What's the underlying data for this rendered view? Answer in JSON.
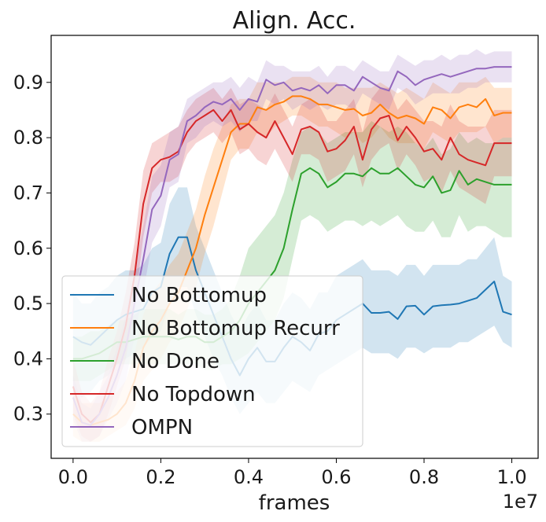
{
  "chart_data": {
    "type": "line",
    "title": "Align. Acc.",
    "xlabel": "frames",
    "x_offset_label": "1e7",
    "ylabel": "",
    "xlim": [
      -0.05,
      1.06
    ],
    "ylim": [
      0.22,
      0.985
    ],
    "x_ticks": [
      0.0,
      0.2,
      0.4,
      0.6,
      0.8,
      1.0
    ],
    "x_tick_labels": [
      "0.0",
      "0.2",
      "0.4",
      "0.6",
      "0.8",
      "1.0"
    ],
    "y_ticks": [
      0.3,
      0.4,
      0.5,
      0.6,
      0.7,
      0.8,
      0.9
    ],
    "y_tick_labels": [
      "0.3",
      "0.4",
      "0.5",
      "0.6",
      "0.7",
      "0.8",
      "0.9"
    ],
    "grid": false,
    "legend_position": "lower-left",
    "x": [
      0.0,
      0.02,
      0.04,
      0.06,
      0.08,
      0.1,
      0.12,
      0.14,
      0.16,
      0.18,
      0.2,
      0.22,
      0.24,
      0.26,
      0.28,
      0.3,
      0.32,
      0.34,
      0.36,
      0.38,
      0.4,
      0.42,
      0.44,
      0.46,
      0.48,
      0.5,
      0.52,
      0.54,
      0.56,
      0.58,
      0.6,
      0.62,
      0.64,
      0.66,
      0.68,
      0.7,
      0.72,
      0.74,
      0.76,
      0.78,
      0.8,
      0.82,
      0.84,
      0.86,
      0.88,
      0.9,
      0.92,
      0.94,
      0.96,
      0.98,
      1.0
    ],
    "series": [
      {
        "name": "No Bottomup",
        "color": "#1f77b4",
        "values": [
          0.44,
          0.43,
          0.425,
          0.44,
          0.455,
          0.47,
          0.48,
          0.485,
          0.49,
          0.52,
          0.53,
          0.59,
          0.62,
          0.62,
          0.56,
          0.52,
          0.48,
          0.44,
          0.4,
          0.37,
          0.4,
          0.42,
          0.395,
          0.395,
          0.42,
          0.44,
          0.43,
          0.415,
          0.445,
          0.45,
          0.47,
          0.48,
          0.49,
          0.5,
          0.483,
          0.483,
          0.485,
          0.472,
          0.495,
          0.496,
          0.48,
          0.495,
          0.497,
          0.498,
          0.5,
          0.505,
          0.51,
          0.525,
          0.54,
          0.485,
          0.48
        ],
        "lower": [
          0.34,
          0.33,
          0.34,
          0.36,
          0.37,
          0.39,
          0.4,
          0.41,
          0.42,
          0.44,
          0.45,
          0.5,
          0.53,
          0.53,
          0.48,
          0.44,
          0.4,
          0.37,
          0.33,
          0.3,
          0.32,
          0.34,
          0.32,
          0.32,
          0.34,
          0.36,
          0.35,
          0.34,
          0.37,
          0.38,
          0.39,
          0.4,
          0.41,
          0.42,
          0.41,
          0.41,
          0.41,
          0.4,
          0.42,
          0.42,
          0.41,
          0.42,
          0.42,
          0.42,
          0.43,
          0.43,
          0.44,
          0.45,
          0.46,
          0.43,
          0.42
        ],
        "upper": [
          0.52,
          0.5,
          0.5,
          0.52,
          0.53,
          0.55,
          0.56,
          0.56,
          0.57,
          0.6,
          0.61,
          0.68,
          0.71,
          0.71,
          0.64,
          0.6,
          0.56,
          0.52,
          0.48,
          0.45,
          0.48,
          0.5,
          0.47,
          0.47,
          0.5,
          0.52,
          0.51,
          0.49,
          0.52,
          0.52,
          0.55,
          0.56,
          0.57,
          0.58,
          0.56,
          0.56,
          0.56,
          0.55,
          0.57,
          0.57,
          0.55,
          0.57,
          0.57,
          0.57,
          0.57,
          0.58,
          0.58,
          0.6,
          0.62,
          0.55,
          0.54
        ]
      },
      {
        "name": "No Bottomup Recurr",
        "color": "#ff7f0e",
        "values": [
          0.3,
          0.285,
          0.28,
          0.285,
          0.29,
          0.3,
          0.32,
          0.36,
          0.42,
          0.45,
          0.47,
          0.5,
          0.52,
          0.56,
          0.6,
          0.66,
          0.71,
          0.76,
          0.81,
          0.825,
          0.825,
          0.855,
          0.85,
          0.86,
          0.865,
          0.875,
          0.875,
          0.87,
          0.86,
          0.86,
          0.855,
          0.85,
          0.852,
          0.84,
          0.845,
          0.86,
          0.845,
          0.835,
          0.84,
          0.835,
          0.825,
          0.855,
          0.85,
          0.835,
          0.855,
          0.86,
          0.855,
          0.87,
          0.84,
          0.845,
          0.845
        ],
        "lower": [
          0.26,
          0.25,
          0.25,
          0.25,
          0.26,
          0.27,
          0.28,
          0.31,
          0.36,
          0.38,
          0.4,
          0.43,
          0.45,
          0.49,
          0.53,
          0.59,
          0.64,
          0.7,
          0.76,
          0.78,
          0.78,
          0.81,
          0.8,
          0.82,
          0.83,
          0.84,
          0.84,
          0.83,
          0.82,
          0.82,
          0.81,
          0.8,
          0.81,
          0.79,
          0.8,
          0.82,
          0.8,
          0.79,
          0.79,
          0.79,
          0.78,
          0.81,
          0.8,
          0.79,
          0.81,
          0.81,
          0.81,
          0.82,
          0.79,
          0.8,
          0.8
        ],
        "upper": [
          0.34,
          0.32,
          0.32,
          0.32,
          0.33,
          0.34,
          0.36,
          0.41,
          0.48,
          0.52,
          0.54,
          0.57,
          0.59,
          0.63,
          0.67,
          0.73,
          0.78,
          0.82,
          0.86,
          0.87,
          0.87,
          0.9,
          0.9,
          0.9,
          0.9,
          0.91,
          0.91,
          0.91,
          0.9,
          0.9,
          0.9,
          0.89,
          0.89,
          0.89,
          0.89,
          0.9,
          0.89,
          0.88,
          0.89,
          0.88,
          0.87,
          0.9,
          0.89,
          0.88,
          0.9,
          0.9,
          0.9,
          0.91,
          0.89,
          0.89,
          0.89
        ]
      },
      {
        "name": "No Done",
        "color": "#2ca02c",
        "values": [
          0.4,
          0.4,
          0.405,
          0.41,
          0.42,
          0.43,
          0.43,
          0.435,
          0.44,
          0.44,
          0.44,
          0.44,
          0.435,
          0.44,
          0.44,
          0.43,
          0.43,
          0.44,
          0.45,
          0.47,
          0.5,
          0.52,
          0.54,
          0.56,
          0.6,
          0.67,
          0.735,
          0.745,
          0.735,
          0.71,
          0.72,
          0.735,
          0.735,
          0.73,
          0.745,
          0.735,
          0.735,
          0.745,
          0.73,
          0.715,
          0.71,
          0.73,
          0.7,
          0.705,
          0.74,
          0.715,
          0.725,
          0.72,
          0.715,
          0.715,
          0.715
        ],
        "lower": [
          0.36,
          0.36,
          0.36,
          0.37,
          0.38,
          0.39,
          0.39,
          0.39,
          0.39,
          0.39,
          0.39,
          0.39,
          0.39,
          0.39,
          0.39,
          0.38,
          0.38,
          0.39,
          0.39,
          0.4,
          0.41,
          0.43,
          0.45,
          0.47,
          0.51,
          0.58,
          0.65,
          0.66,
          0.65,
          0.63,
          0.64,
          0.65,
          0.65,
          0.64,
          0.65,
          0.64,
          0.65,
          0.66,
          0.64,
          0.63,
          0.63,
          0.65,
          0.62,
          0.62,
          0.66,
          0.63,
          0.64,
          0.64,
          0.63,
          0.62,
          0.62
        ],
        "upper": [
          0.44,
          0.44,
          0.45,
          0.45,
          0.46,
          0.47,
          0.47,
          0.48,
          0.49,
          0.49,
          0.49,
          0.49,
          0.48,
          0.49,
          0.49,
          0.48,
          0.48,
          0.49,
          0.51,
          0.55,
          0.6,
          0.62,
          0.64,
          0.66,
          0.7,
          0.76,
          0.81,
          0.82,
          0.81,
          0.79,
          0.8,
          0.81,
          0.81,
          0.81,
          0.83,
          0.82,
          0.81,
          0.82,
          0.81,
          0.79,
          0.78,
          0.8,
          0.77,
          0.78,
          0.81,
          0.79,
          0.8,
          0.79,
          0.79,
          0.8,
          0.8
        ]
      },
      {
        "name": "No Topdown",
        "color": "#d62728",
        "values": [
          0.35,
          0.3,
          0.285,
          0.3,
          0.35,
          0.4,
          0.46,
          0.55,
          0.68,
          0.745,
          0.76,
          0.765,
          0.775,
          0.81,
          0.83,
          0.84,
          0.85,
          0.83,
          0.85,
          0.815,
          0.825,
          0.81,
          0.8,
          0.83,
          0.8,
          0.77,
          0.815,
          0.82,
          0.81,
          0.775,
          0.78,
          0.795,
          0.82,
          0.76,
          0.815,
          0.835,
          0.84,
          0.795,
          0.82,
          0.8,
          0.775,
          0.78,
          0.76,
          0.8,
          0.77,
          0.76,
          0.755,
          0.75,
          0.79,
          0.79,
          0.79
        ],
        "lower": [
          0.3,
          0.26,
          0.25,
          0.26,
          0.3,
          0.35,
          0.4,
          0.49,
          0.62,
          0.7,
          0.72,
          0.72,
          0.73,
          0.77,
          0.79,
          0.8,
          0.81,
          0.79,
          0.81,
          0.77,
          0.78,
          0.76,
          0.75,
          0.78,
          0.75,
          0.72,
          0.77,
          0.77,
          0.76,
          0.72,
          0.73,
          0.74,
          0.77,
          0.71,
          0.76,
          0.78,
          0.79,
          0.74,
          0.77,
          0.75,
          0.72,
          0.73,
          0.7,
          0.74,
          0.71,
          0.7,
          0.69,
          0.68,
          0.73,
          0.73,
          0.73
        ],
        "upper": [
          0.4,
          0.34,
          0.32,
          0.34,
          0.4,
          0.45,
          0.52,
          0.61,
          0.74,
          0.79,
          0.8,
          0.81,
          0.82,
          0.85,
          0.87,
          0.88,
          0.89,
          0.87,
          0.89,
          0.86,
          0.87,
          0.86,
          0.85,
          0.88,
          0.85,
          0.82,
          0.86,
          0.87,
          0.86,
          0.83,
          0.83,
          0.85,
          0.87,
          0.81,
          0.87,
          0.89,
          0.89,
          0.85,
          0.87,
          0.85,
          0.83,
          0.83,
          0.82,
          0.86,
          0.83,
          0.82,
          0.82,
          0.82,
          0.85,
          0.85,
          0.85
        ]
      },
      {
        "name": "OMPN",
        "color": "#9467bd",
        "values": [
          0.33,
          0.285,
          0.28,
          0.3,
          0.33,
          0.37,
          0.42,
          0.5,
          0.58,
          0.67,
          0.695,
          0.76,
          0.77,
          0.83,
          0.84,
          0.855,
          0.865,
          0.86,
          0.87,
          0.85,
          0.87,
          0.865,
          0.905,
          0.895,
          0.9,
          0.885,
          0.89,
          0.885,
          0.895,
          0.88,
          0.895,
          0.895,
          0.885,
          0.91,
          0.9,
          0.89,
          0.885,
          0.92,
          0.91,
          0.895,
          0.905,
          0.91,
          0.915,
          0.91,
          0.915,
          0.92,
          0.925,
          0.925,
          0.928,
          0.928,
          0.928
        ],
        "lower": [
          0.29,
          0.25,
          0.25,
          0.26,
          0.29,
          0.32,
          0.36,
          0.44,
          0.52,
          0.61,
          0.64,
          0.71,
          0.72,
          0.79,
          0.8,
          0.82,
          0.83,
          0.82,
          0.83,
          0.81,
          0.83,
          0.83,
          0.87,
          0.86,
          0.87,
          0.85,
          0.86,
          0.85,
          0.86,
          0.85,
          0.86,
          0.86,
          0.85,
          0.88,
          0.87,
          0.86,
          0.85,
          0.89,
          0.88,
          0.86,
          0.87,
          0.88,
          0.88,
          0.88,
          0.88,
          0.89,
          0.89,
          0.9,
          0.9,
          0.9,
          0.9
        ],
        "upper": [
          0.37,
          0.32,
          0.31,
          0.34,
          0.37,
          0.42,
          0.48,
          0.56,
          0.64,
          0.73,
          0.75,
          0.81,
          0.82,
          0.87,
          0.88,
          0.89,
          0.9,
          0.9,
          0.91,
          0.89,
          0.91,
          0.9,
          0.94,
          0.93,
          0.93,
          0.92,
          0.92,
          0.92,
          0.93,
          0.91,
          0.93,
          0.93,
          0.92,
          0.94,
          0.93,
          0.92,
          0.92,
          0.95,
          0.94,
          0.93,
          0.94,
          0.94,
          0.95,
          0.94,
          0.95,
          0.95,
          0.96,
          0.95,
          0.956,
          0.956,
          0.956
        ]
      }
    ]
  }
}
